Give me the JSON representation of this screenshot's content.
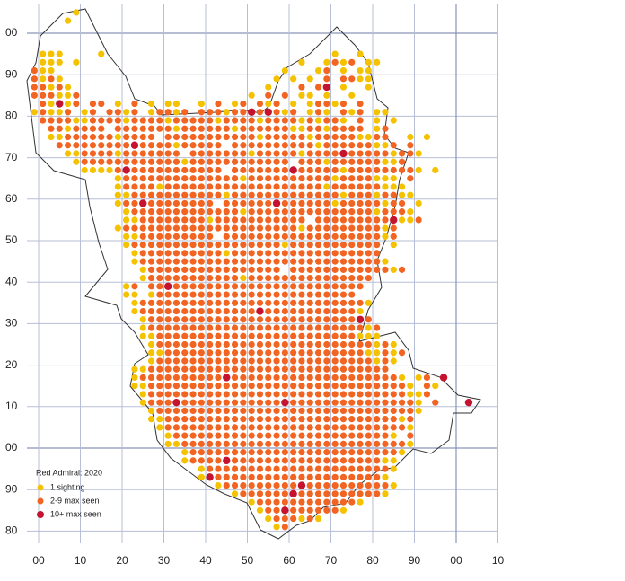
{
  "map": {
    "y_labels": [
      "00",
      "90",
      "80",
      "70",
      "60",
      "50",
      "40",
      "30",
      "20",
      "10",
      "00",
      "90",
      "80"
    ],
    "x_labels": [
      "00",
      "10",
      "20",
      "30",
      "40",
      "50",
      "60",
      "70",
      "80",
      "90",
      "00",
      "10"
    ],
    "legend": {
      "title": "Red Admiral:  2020",
      "items": [
        {
          "label": "1 sighting",
          "color": "#f5c200"
        },
        {
          "label": "2-9 max seen",
          "color": "#f26422"
        },
        {
          "label": "10+ max seen",
          "color": "#c4122f"
        }
      ]
    },
    "dots": {
      "rows": [
        ".....1",
        "....1",
        "",
        "",
        "",
        ".111....1...........................1..1",
        ".111.1..........................1..1212.11",
        "211...........................1...12.1.11",
        "2121.........................1.1.1.2.2211",
        "22121.......................1...2.23.1..1",
        "222112....................1.2.2.11.1..1",
        ".21312.22.1.2.1.11..1.2.12.212.1.12212.2",
        "12112.12.2212.12212.222122323212.121.212.11",
        ".2222112222122221222221222212222121221.2.1.1",
        "..2212222.222222212222221222222112212222.12",
        "..1122222212222.222222222221222221222221122..1.1",
        "...22222222232222122222.22222222221222222112.2",
        "....11222212222222.2222222122222122223222221221",
        ".....12222222222221222222222222.2221222222112",
        "......11112322222222222.22222223222221222222221.1",
        "..........1222222222222221222222222212222111.2",
        "..........12222122222222222222222221222222111",
        "..........112222222222212222222222222122212211",
        "..........122322222222.2222223222222122222122.1",
        "...........12222222222222122222222222222212221",
        "...........1122222222122222222222.2222222223112",
        "..........1222222222222222222222122222222212",
        "...........11222222222.222222222222222222212",
        "...........1222222222222222222122222222222.1",
        "............122222222221222222222222222222",
        "............1222222222222222222222222222221",
        ".............12222222222222222.22222222222212",
        ".............1222222222221222222222222222",
        "...........12.22322222222222222222222222",
        "...........11.1222222222222222222222222",
        "............12222222222222222222222222221",
        "............1222222222222223222222222221",
        ".............1222222222222222222222222232",
        ".............12222222222222222222222222212",
        ".............11222222222222222222222222111",
        "..............122222222222222222222222222121",
        "..............1122222222222222222222222211212",
        "..............122222222222222222222222222121",
        "............1122222222222222222222222222222...",
        "............122222222223222222222222222222221.12.3",
        "............1122222222222222222222222222222221.21",
        ".............12222222222222222222222222222222112",
        ".............1222322222222222232222222222222221.2...3",
        "..............122222222222222222222222222222221",
        "..............11222222222222222222222222222212",
        "...............1222222222222222222222222222221",
        "................1222222222222222222222222221.2",
        "................112222222222222222222222222221",
        "..................122222222222222222222222221",
        "..................12222322222222222222222211",
        "....................122222222222222222222221",
        "....................13222222222222222222221",
        "......................1222222222322222222221",
        "........................1222222322222222221",
        "..........................12222222222221",
        "...........................12232222221",
        "............................1222121",
        ".............................12"
      ]
    }
  }
}
